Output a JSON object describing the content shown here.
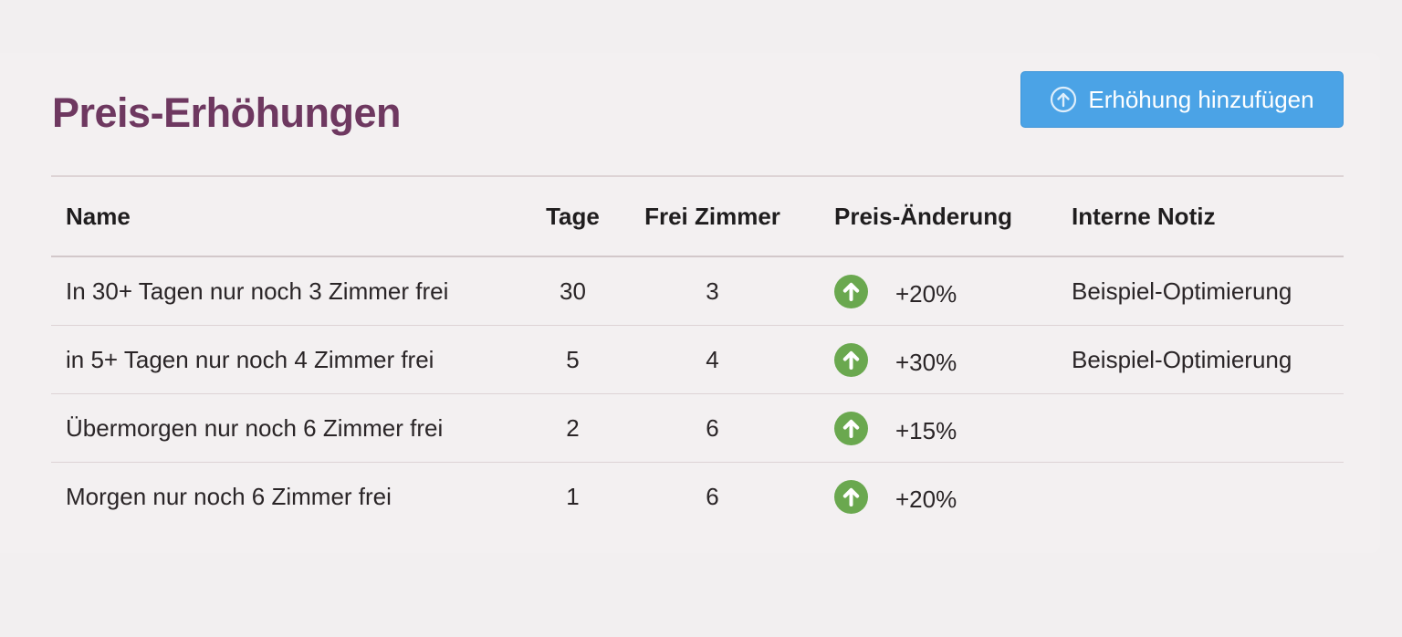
{
  "page": {
    "title": "Preis-Erhöhungen",
    "add_button_label": "Erhöhung hinzufügen",
    "add_button_icon": "arrow-up-circle-icon"
  },
  "colors": {
    "title": "#6e3860",
    "button": "#4ba3e6",
    "up_icon": "#6aa84f",
    "background": "#f2eff0"
  },
  "table": {
    "headers": {
      "name": "Name",
      "days": "Tage",
      "free_rooms": "Frei Zimmer",
      "price_change": "Preis-Änderung",
      "note": "Interne Notiz"
    },
    "rows": [
      {
        "name": "In 30+ Tagen nur noch 3 Zimmer frei",
        "days": "30",
        "free_rooms": "3",
        "price_change": "+20%",
        "note": "Beispiel-Optimierung"
      },
      {
        "name": "in 5+ Tagen nur noch 4 Zimmer frei",
        "days": "5",
        "free_rooms": "4",
        "price_change": "+30%",
        "note": "Beispiel-Optimierung"
      },
      {
        "name": "Übermorgen nur noch 6 Zimmer frei",
        "days": "2",
        "free_rooms": "6",
        "price_change": "+15%",
        "note": ""
      },
      {
        "name": "Morgen nur noch 6 Zimmer frei",
        "days": "1",
        "free_rooms": "6",
        "price_change": "+20%",
        "note": ""
      }
    ],
    "row_icon": "arrow-up-circle-icon"
  }
}
